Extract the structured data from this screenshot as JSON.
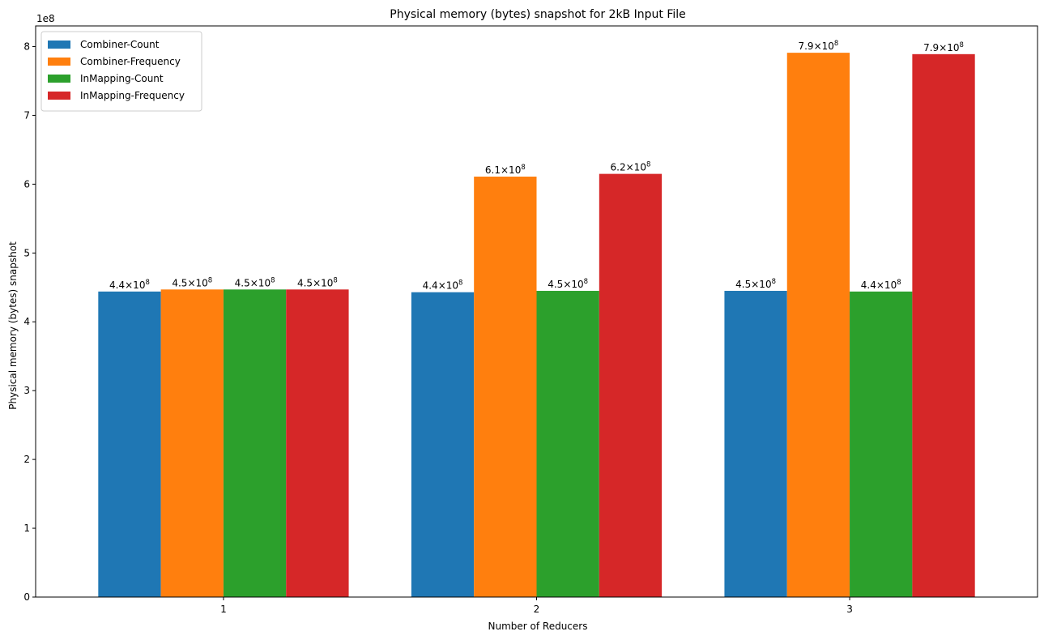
{
  "chart_data": {
    "type": "bar",
    "title": "Physical memory (bytes) snapshot for 2kB Input File",
    "xlabel": "Number of Reducers",
    "ylabel": "Physical memory (bytes) snapshot",
    "y_offset_text": "1e8",
    "categories": [
      "1",
      "2",
      "3"
    ],
    "ylim": [
      0,
      830000000
    ],
    "yticks": [
      0,
      1,
      2,
      3,
      4,
      5,
      6,
      7,
      8
    ],
    "legend_position": "upper-left",
    "series": [
      {
        "name": "Combiner-Count",
        "color": "#1f77b4",
        "values": [
          444000000,
          443000000,
          445000000
        ],
        "labels": [
          {
            "mantissa": "4.4",
            "exp": "8"
          },
          {
            "mantissa": "4.4",
            "exp": "8"
          },
          {
            "mantissa": "4.5",
            "exp": "8"
          }
        ]
      },
      {
        "name": "Combiner-Frequency",
        "color": "#ff7f0e",
        "values": [
          447000000,
          611000000,
          791000000
        ],
        "labels": [
          {
            "mantissa": "4.5",
            "exp": "8"
          },
          {
            "mantissa": "6.1",
            "exp": "8"
          },
          {
            "mantissa": "7.9",
            "exp": "8"
          }
        ]
      },
      {
        "name": "InMapping-Count",
        "color": "#2ca02c",
        "values": [
          447000000,
          445000000,
          444000000
        ],
        "labels": [
          {
            "mantissa": "4.5",
            "exp": "8"
          },
          {
            "mantissa": "4.5",
            "exp": "8"
          },
          {
            "mantissa": "4.4",
            "exp": "8"
          }
        ]
      },
      {
        "name": "InMapping-Frequency",
        "color": "#d62728",
        "values": [
          447000000,
          615000000,
          789000000
        ],
        "labels": [
          {
            "mantissa": "4.5",
            "exp": "8"
          },
          {
            "mantissa": "6.2",
            "exp": "8"
          },
          {
            "mantissa": "7.9",
            "exp": "8"
          }
        ]
      }
    ]
  }
}
